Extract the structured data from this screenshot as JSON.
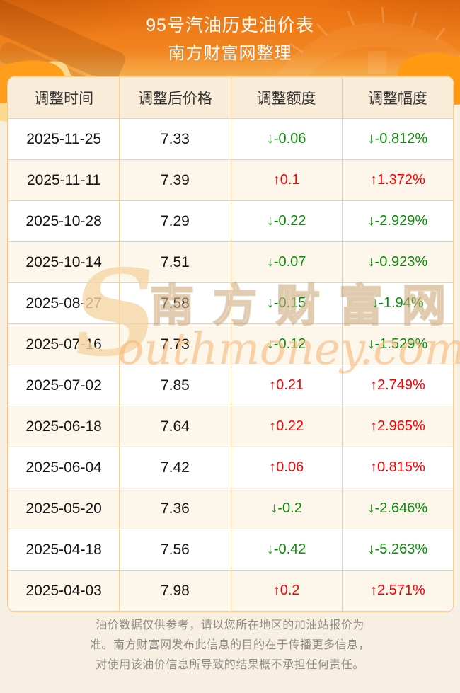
{
  "page": {
    "title": "95号汽油历史油价表",
    "subtitle": "南方财富网整理"
  },
  "table": {
    "columns": [
      "调整时间",
      "调整后价格",
      "调整额度",
      "调整幅度"
    ],
    "rows": [
      {
        "date": "2025-11-25",
        "price": "7.33",
        "amount": "↓-0.06",
        "rate": "↓-0.812%",
        "direction": "down"
      },
      {
        "date": "2025-11-11",
        "price": "7.39",
        "amount": "↑0.1",
        "rate": "↑1.372%",
        "direction": "up"
      },
      {
        "date": "2025-10-28",
        "price": "7.29",
        "amount": "↓-0.22",
        "rate": "↓-2.929%",
        "direction": "down"
      },
      {
        "date": "2025-10-14",
        "price": "7.51",
        "amount": "↓-0.07",
        "rate": "↓-0.923%",
        "direction": "down"
      },
      {
        "date": "2025-08-27",
        "price": "7.58",
        "amount": "↓-0.15",
        "rate": "↓-1.94%",
        "direction": "down"
      },
      {
        "date": "2025-07-16",
        "price": "7.73",
        "amount": "↓-0.12",
        "rate": "↓-1.529%",
        "direction": "down"
      },
      {
        "date": "2025-07-02",
        "price": "7.85",
        "amount": "↑0.21",
        "rate": "↑2.749%",
        "direction": "up"
      },
      {
        "date": "2025-06-18",
        "price": "7.64",
        "amount": "↑0.22",
        "rate": "↑2.965%",
        "direction": "up"
      },
      {
        "date": "2025-06-04",
        "price": "7.42",
        "amount": "↑0.06",
        "rate": "↑0.815%",
        "direction": "up"
      },
      {
        "date": "2025-05-20",
        "price": "7.36",
        "amount": "↓-0.2",
        "rate": "↓-2.646%",
        "direction": "down"
      },
      {
        "date": "2025-04-18",
        "price": "7.56",
        "amount": "↓-0.42",
        "rate": "↓-5.263%",
        "direction": "down"
      },
      {
        "date": "2025-04-03",
        "price": "7.98",
        "amount": "↑0.2",
        "rate": "↑2.571%",
        "direction": "up"
      }
    ]
  },
  "watermark": {
    "initial": "S",
    "cn": "南方财富网",
    "en": "outhmoney.com"
  },
  "footer": {
    "lines": [
      "油价数据仅供参考，请以您所在地区的加油站报价为",
      "准。南方财富网发布此信息的目的在于传播更多信息，",
      "对使用该油价信息所导致的结果概不承担任何责任。"
    ]
  },
  "colors": {
    "up_red": "#fb0000",
    "down_green": "#0b8a0b",
    "band_orange_top": "#ec7110",
    "band_orange_bottom": "#f9c466",
    "table_border": "#f6cd94",
    "header_row_bg": "#f9edda",
    "even_row_bg": "#fdf6eb",
    "page_bg": "#f6efe2",
    "gauge_full_label": "F"
  }
}
